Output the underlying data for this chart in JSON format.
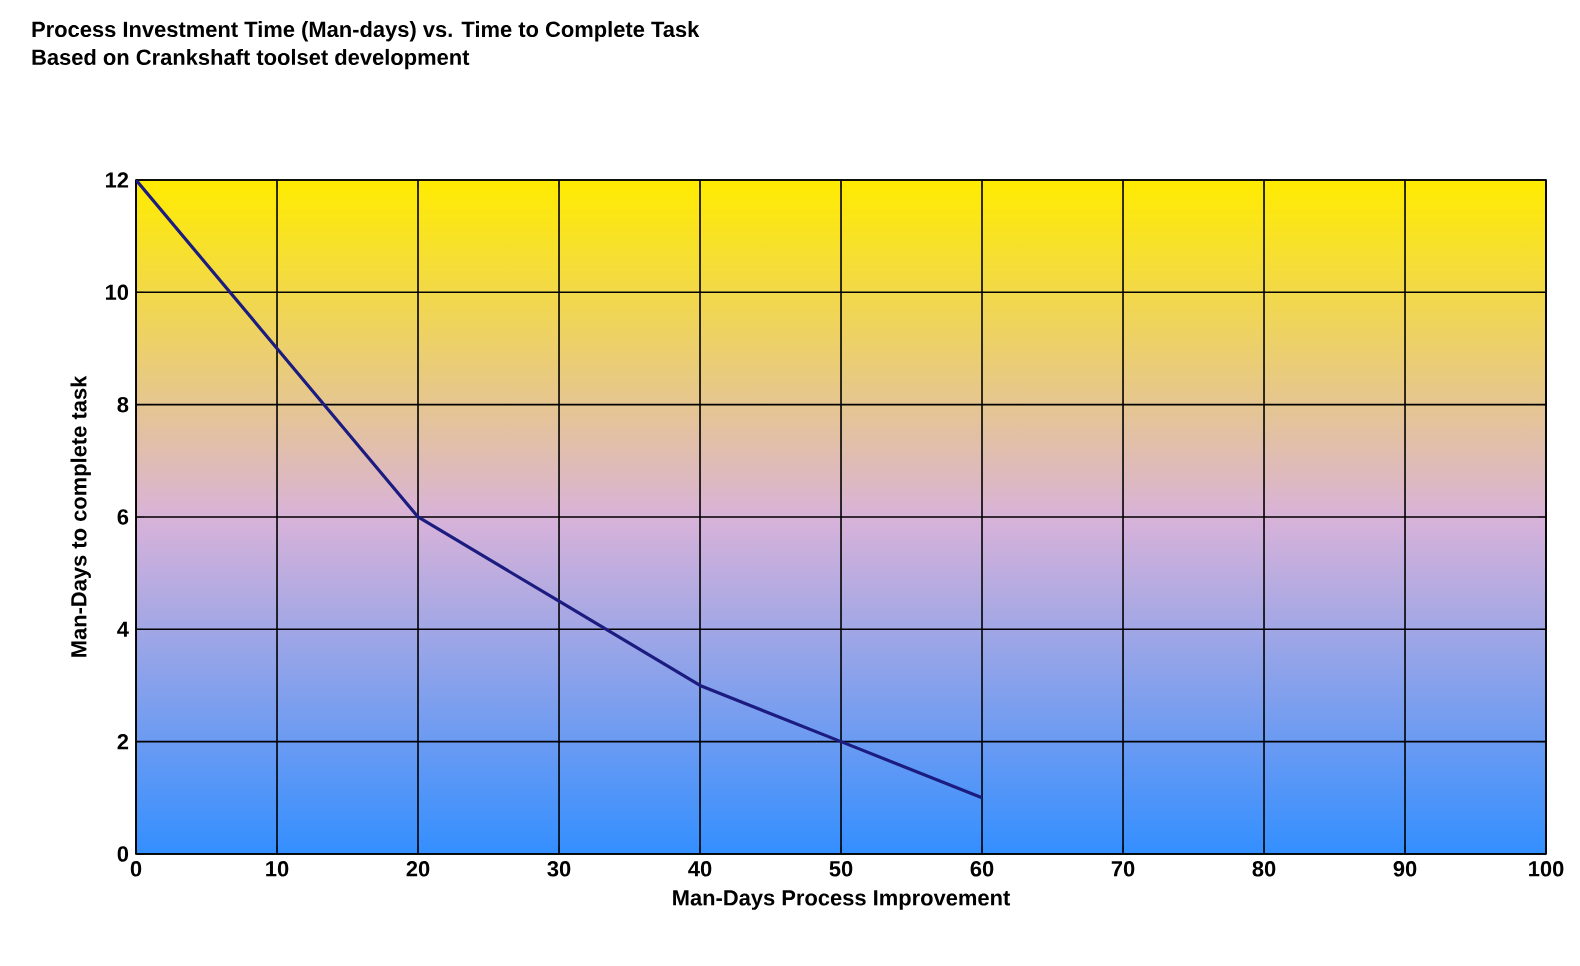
{
  "chart_data": {
    "type": "line",
    "title": "Process Investment Time (Man-days) vs. Time to Complete Task",
    "subtitle": "Based on Crankshaft toolset development",
    "xlabel": "Man-Days Process Improvement",
    "ylabel": "Man-Days to complete task",
    "x": [
      0,
      10,
      20,
      30,
      40,
      50,
      60
    ],
    "series": [
      {
        "color": "#1c1c80",
        "values": [
          12,
          9,
          6,
          4.5,
          3,
          2,
          1
        ]
      }
    ],
    "xlim": [
      0,
      100
    ],
    "xticks": [
      0,
      10,
      20,
      30,
      40,
      50,
      60,
      70,
      80,
      90,
      100
    ],
    "ylim": [
      0,
      12
    ],
    "yticks": [
      0,
      2,
      4,
      6,
      8,
      10,
      12
    ],
    "grid": true,
    "marker": "none",
    "line_style": "solid"
  }
}
